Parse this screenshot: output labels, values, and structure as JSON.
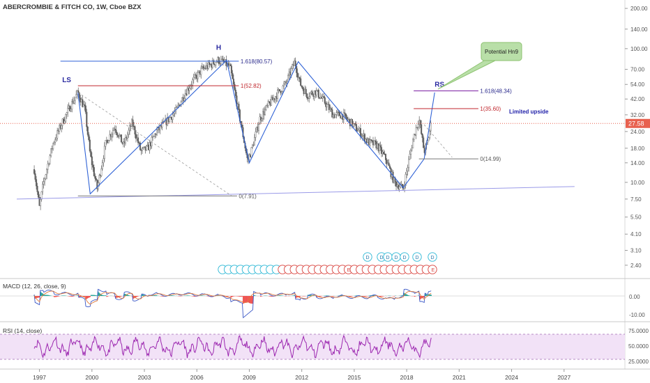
{
  "title": "ABERCROMBIE & FITCH CO, 1W, Cboe BZX",
  "colors": {
    "candle": "#5b5b5b",
    "line": "#2f62d6",
    "neckline": "#9a9ae8",
    "fib": "#7b1fa2",
    "red": "#c0262c",
    "price_tag": "#e8614f",
    "macd": "#3a57c7",
    "signal": "#e07a3a",
    "rsi": "#9c27b0",
    "rsi_band": "#f2e2f7",
    "callout_fill": "#b9dfa8",
    "callout_stroke": "#8cc26f",
    "earn_blue": "#2bb7d5",
    "earn_red": "#d9443f",
    "pattern": "#2a2aa0"
  },
  "price_axis": {
    "ticks": [
      "200.00",
      "140.00",
      "100.00",
      "70.00",
      "54.00",
      "42.00",
      "32.00",
      "24.00",
      "18.00",
      "14.00",
      "10.00",
      "7.50",
      "5.50",
      "4.10",
      "3.10",
      "2.40"
    ],
    "last_price": "27.58"
  },
  "x_axis": {
    "ticks": [
      "1997",
      "2000",
      "2003",
      "2006",
      "2009",
      "2012",
      "2015",
      "2018",
      "2021",
      "2024",
      "2027"
    ]
  },
  "pattern_labels": {
    "ls": "LS",
    "h": "H",
    "rs": "RS"
  },
  "fib_labels": {
    "fib_h": "1.618(80.57)",
    "fib_red_h": "1(52.82)",
    "fib_zero_left": "0(7.91)",
    "fib_rs_top": "1.618(48.34)",
    "fib_rs_mid": "1(35.60)",
    "fib_rs_zero": "0(14.99)"
  },
  "annotations": {
    "callout": "Potential Hn9",
    "limited_upside": "Limited upside"
  },
  "events": {
    "dividend_letter": "D",
    "earnings_letter": "E"
  },
  "macd": {
    "label": "MACD (12, 26, close, 9)",
    "ticks": [
      "0.00",
      "-10.00"
    ]
  },
  "rsi": {
    "label": "RSI (14, close)",
    "ticks": [
      "75.0000",
      "50.0000",
      "25.0000"
    ]
  },
  "chart_data": {
    "type": "line",
    "title": "ABERCROMBIE & FITCH CO, 1W, Cboe BZX",
    "xlabel": "",
    "ylabel": "",
    "scale": "log",
    "ylim": [
      2.1,
      210
    ],
    "xlim": [
      1995.7,
      2030.0
    ],
    "series": [
      {
        "x": [
          1996.7,
          1997.0,
          1997.2,
          1997.5,
          1997.8,
          1998.3,
          1998.8,
          1999.2,
          1999.6,
          1999.9,
          2000.3,
          2000.8,
          2001.3,
          2001.8,
          2002.3,
          2002.8,
          2003.2,
          2003.7,
          2004.2,
          2004.8,
          2005.3,
          2005.8,
          2006.3,
          2006.8,
          2007.2,
          2007.6,
          2007.9,
          2008.2,
          2008.6,
          2008.9,
          2009.1,
          2009.6,
          2010.1,
          2010.6,
          2011.1,
          2011.6,
          2011.9,
          2012.3,
          2012.8,
          2013.3,
          2013.8,
          2014.3,
          2014.8,
          2015.3,
          2015.8,
          2016.3,
          2016.8,
          2017.3,
          2017.8,
          2018.1,
          2018.4,
          2018.7,
          2019.0,
          2019.2,
          2019.4
        ],
        "values": [
          12.5,
          6.5,
          9.5,
          14,
          20,
          28,
          38,
          47,
          35,
          16,
          9,
          20,
          26,
          19,
          28,
          17,
          18,
          24,
          28,
          34,
          46,
          58,
          70,
          76,
          82,
          78,
          72,
          45,
          24,
          14.5,
          17,
          30,
          38,
          46,
          55,
          80,
          55,
          45,
          48,
          40,
          32,
          32,
          28,
          24,
          20,
          19,
          15,
          10,
          9,
          14,
          22,
          30,
          17,
          20,
          27.6
        ]
      }
    ],
    "pattern_levels": [
      7.91,
      14.99,
      35.6,
      48.34,
      52.82,
      80.57
    ],
    "last_price": 27.58
  }
}
